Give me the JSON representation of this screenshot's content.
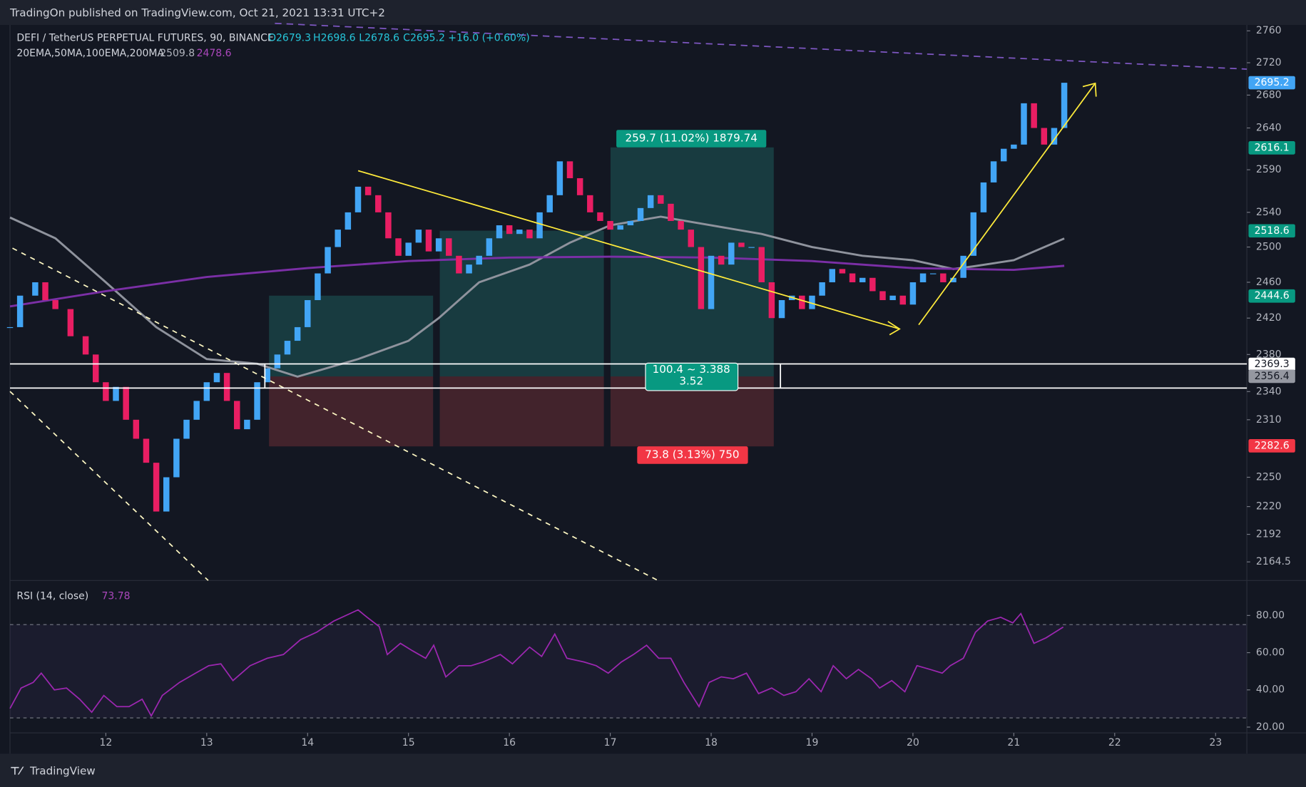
{
  "header": {
    "publisher": "TradingOn published on TradingView.com, Oct 21, 2021 13:31 UTC+2"
  },
  "legend": {
    "symbol": "DEFI / TetherUS PERPETUAL FUTURES, 90, BINANCE",
    "open": "O2679.3",
    "high": "H2698.6",
    "low": "L2678.6",
    "close": "C2695.2",
    "change": "+16.0 (+0.60%)",
    "indicators": "20EMA,50MA,100EMA,200MA"
  },
  "footer": {
    "brand": "TradingView"
  },
  "chart_data": [
    {
      "type": "candlestick",
      "up_color": "#42a5f5",
      "down_color": "#e91e63",
      "log": true,
      "xlim": [
        11.05,
        23.31
      ],
      "xticks": [
        12,
        13,
        14,
        15,
        16,
        17,
        18,
        19,
        20,
        21,
        22,
        23
      ],
      "ylim": [
        2146.2,
        2767.4
      ],
      "yticks": [
        2760,
        2720,
        2680,
        2640,
        2590,
        2540,
        2500,
        2460,
        2420,
        2380,
        2340,
        2310,
        2250,
        2220,
        2192,
        2164.5
      ],
      "x": [
        11.05,
        11.15,
        11.3,
        11.4,
        11.5,
        11.65,
        11.8,
        11.9,
        12.0,
        12.1,
        12.2,
        12.3,
        12.4,
        12.5,
        12.6,
        12.7,
        12.8,
        12.9,
        13.0,
        13.1,
        13.2,
        13.3,
        13.4,
        13.5,
        13.6,
        13.7,
        13.8,
        13.9,
        14.0,
        14.1,
        14.2,
        14.3,
        14.4,
        14.5,
        14.6,
        14.7,
        14.8,
        14.9,
        15.0,
        15.1,
        15.2,
        15.3,
        15.4,
        15.5,
        15.6,
        15.7,
        15.8,
        15.9,
        16.0,
        16.1,
        16.2,
        16.3,
        16.4,
        16.5,
        16.6,
        16.7,
        16.8,
        16.9,
        17.0,
        17.1,
        17.2,
        17.3,
        17.4,
        17.5,
        17.6,
        17.7,
        17.8,
        17.9,
        18.0,
        18.1,
        18.2,
        18.3,
        18.4,
        18.5,
        18.6,
        18.7,
        18.8,
        18.9,
        19.0,
        19.1,
        19.2,
        19.3,
        19.4,
        19.5,
        19.6,
        19.7,
        19.8,
        19.9,
        20.0,
        20.1,
        20.2,
        20.3,
        20.4,
        20.5,
        20.6,
        20.7,
        20.8,
        20.9,
        21.0,
        21.1,
        21.2,
        21.3,
        21.4,
        21.5
      ],
      "values": [
        2410,
        2445,
        2460,
        2440,
        2430,
        2400,
        2380,
        2350,
        2330,
        2345,
        2310,
        2290,
        2265,
        2215,
        2250,
        2290,
        2310,
        2330,
        2350,
        2360,
        2330,
        2300,
        2310,
        2350,
        2365,
        2380,
        2395,
        2410,
        2440,
        2470,
        2500,
        2520,
        2540,
        2570,
        2560,
        2540,
        2510,
        2490,
        2505,
        2520,
        2495,
        2510,
        2490,
        2470,
        2480,
        2490,
        2510,
        2525,
        2515,
        2520,
        2510,
        2540,
        2560,
        2600,
        2580,
        2560,
        2540,
        2530,
        2520,
        2525,
        2530,
        2545,
        2560,
        2550,
        2530,
        2520,
        2500,
        2430,
        2490,
        2480,
        2505,
        2500,
        2500,
        2460,
        2420,
        2440,
        2445,
        2430,
        2445,
        2460,
        2475,
        2470,
        2460,
        2465,
        2450,
        2440,
        2445,
        2435,
        2460,
        2470,
        2470,
        2460,
        2465,
        2490,
        2540,
        2575,
        2600,
        2615,
        2620,
        2670,
        2640,
        2620,
        2640,
        2695.2
      ],
      "overlays": [
        {
          "color": "#8f939d",
          "x": [
            11.05,
            11.5,
            12.0,
            12.5,
            13.0,
            13.5,
            13.9,
            14.5,
            15.0,
            15.3,
            15.7,
            16.2,
            16.6,
            17.0,
            17.5,
            18.0,
            18.5,
            19.0,
            19.5,
            20.0,
            20.4,
            20.6,
            21.0,
            21.5
          ],
          "values": [
            2534,
            2510,
            2460,
            2410,
            2375,
            2370,
            2356,
            2375,
            2395,
            2420,
            2460,
            2480,
            2505,
            2525,
            2535,
            2525,
            2515,
            2500,
            2490,
            2485,
            2475,
            2478,
            2485,
            2509.8
          ]
        },
        {
          "color": "#7b2fa6",
          "x": [
            11.05,
            12,
            13,
            14,
            15,
            16,
            17,
            18,
            19,
            20,
            21,
            21.5
          ],
          "values": [
            2433,
            2450,
            2466,
            2476,
            2484,
            2488,
            2489,
            2488,
            2484,
            2476,
            2474,
            2478.6
          ]
        }
      ],
      "price_labels": [
        {
          "value": 2695.2,
          "color": "#42a5f5",
          "text_color": "#ffffff"
        },
        {
          "value": 2616.1,
          "color": "#089981",
          "text_color": "#ffffff"
        },
        {
          "value": 2518.6,
          "color": "#089981",
          "text_color": "#ffffff"
        },
        {
          "value": 2444.6,
          "color": "#089981",
          "text_color": "#ffffff"
        },
        {
          "value": 2369.3,
          "color": "#ffffff",
          "text_color": "#131722"
        },
        {
          "value": 2356.4,
          "color": "#9598a1",
          "text_color": "#131722"
        },
        {
          "value": 2282.6,
          "color": "#f23645",
          "text_color": "#ffffff"
        }
      ],
      "annotations": {
        "profit": "259.7 (11.02%) 1879.74",
        "loss": "73.8 (3.13%) 750",
        "range": "100.4 ~ 3.388",
        "ratio": "3.52"
      }
    },
    {
      "type": "line",
      "title": "RSI (14, close)",
      "color": "#9c27b0",
      "ylim": [
        16.9,
        98.8
      ],
      "yticks": [
        {
          "value": 80,
          "label": "80.00"
        },
        {
          "value": 60,
          "label": "60.00"
        },
        {
          "value": 40,
          "label": "40.00"
        },
        {
          "value": 20,
          "label": "20.00"
        }
      ],
      "x": [
        11.05,
        11.16,
        11.28,
        11.36,
        11.49,
        11.61,
        11.74,
        11.86,
        11.98,
        12.11,
        12.23,
        12.36,
        12.45,
        12.56,
        12.73,
        12.89,
        13.02,
        13.14,
        13.26,
        13.43,
        13.6,
        13.76,
        13.93,
        14.09,
        14.26,
        14.42,
        14.5,
        14.59,
        14.71,
        14.79,
        14.92,
        15.04,
        15.17,
        15.25,
        15.37,
        15.5,
        15.62,
        15.74,
        15.91,
        16.03,
        16.2,
        16.32,
        16.45,
        16.57,
        16.74,
        16.86,
        16.98,
        17.11,
        17.23,
        17.36,
        17.48,
        17.6,
        17.73,
        17.88,
        17.98,
        18.1,
        18.22,
        18.35,
        18.47,
        18.6,
        18.72,
        18.84,
        18.97,
        19.09,
        19.21,
        19.34,
        19.46,
        19.59,
        19.67,
        19.79,
        19.92,
        20.04,
        20.17,
        20.29,
        20.37,
        20.5,
        20.62,
        20.74,
        20.87,
        20.99,
        21.07,
        21.2,
        21.32,
        21.49
      ],
      "values": [
        30,
        41,
        44,
        49,
        40,
        41,
        35,
        28,
        37,
        31,
        31,
        35,
        26,
        37,
        44,
        49,
        53,
        54,
        45,
        53,
        57,
        59,
        67,
        71,
        77,
        81,
        83,
        79,
        74,
        59,
        65,
        61,
        57,
        64,
        47,
        53,
        53,
        55,
        59,
        54,
        63,
        58,
        70,
        57,
        55,
        53,
        49,
        55,
        59,
        64,
        57,
        57,
        44,
        31,
        44,
        47,
        46,
        49,
        38,
        41,
        37,
        39,
        46,
        39,
        53,
        46,
        51,
        46,
        41,
        45,
        39,
        53,
        51,
        49,
        53,
        57,
        71,
        77,
        79,
        76,
        81,
        65,
        68,
        73.78
      ]
    }
  ]
}
